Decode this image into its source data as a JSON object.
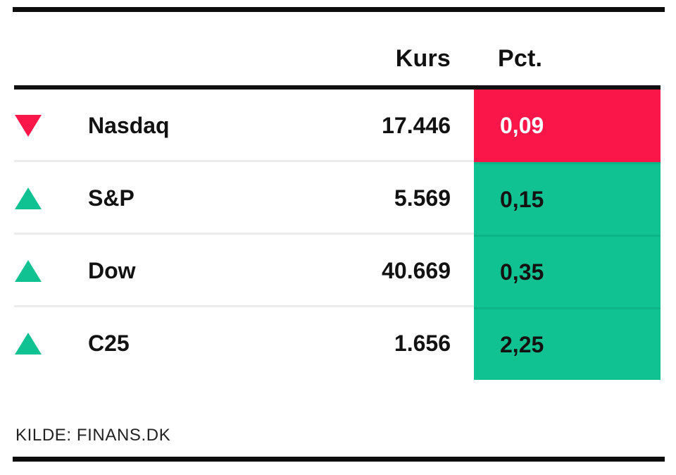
{
  "chart_data": {
    "type": "table",
    "columns": [
      "Kurs",
      "Pct."
    ],
    "rows": [
      {
        "label": "Nasdaq",
        "direction": "down",
        "kurs": "17.446",
        "pct": "0,09"
      },
      {
        "label": "S&P",
        "direction": "up",
        "kurs": "5.569",
        "pct": "0,15"
      },
      {
        "label": "Dow",
        "direction": "up",
        "kurs": "40.669",
        "pct": "0,35"
      },
      {
        "label": "C25",
        "direction": "up",
        "kurs": "1.656",
        "pct": "2,25"
      }
    ],
    "legend_position": "none",
    "grid": "row-separators"
  },
  "header": {
    "kurs_label": "Kurs",
    "pct_label": "Pct."
  },
  "source": {
    "label": "KILDE: FINANS.DK"
  },
  "colors": {
    "negative": "#FB164A",
    "positive": "#10C191",
    "negative_text": "#ffffff",
    "positive_text": "#121212",
    "rule": "#101010",
    "separator": "#ececec",
    "frame_bar": "#0d0d0d",
    "background": "#ffffff"
  }
}
